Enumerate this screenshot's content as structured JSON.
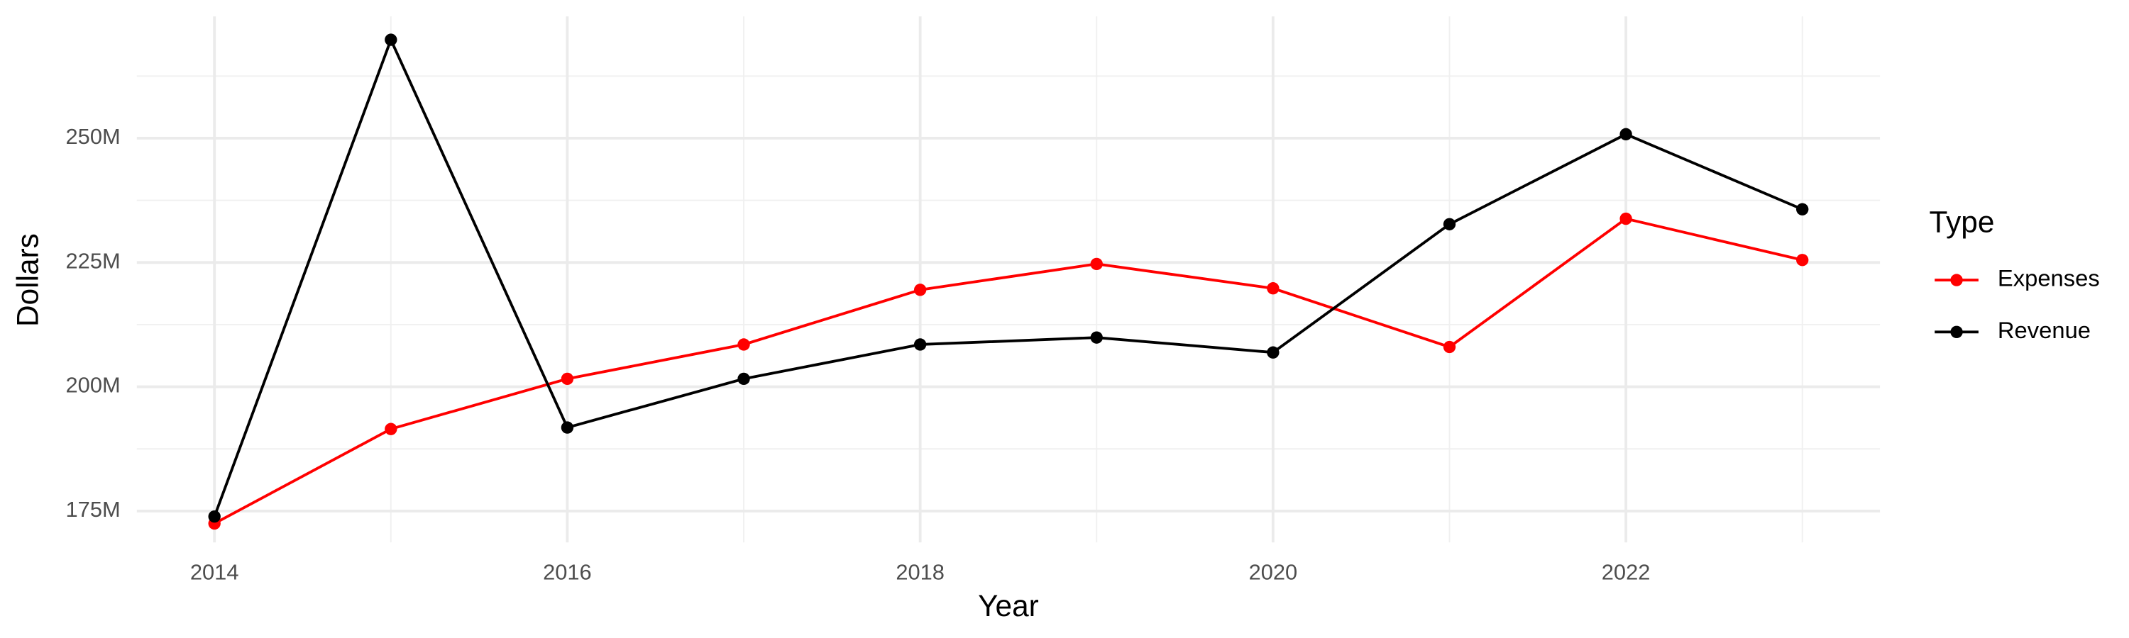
{
  "chart_data": {
    "type": "line",
    "x_label": "Year",
    "y_label": "Dollars",
    "legend_title": "Type",
    "x": [
      2014,
      2015,
      2016,
      2017,
      2018,
      2019,
      2020,
      2021,
      2022,
      2023
    ],
    "series": [
      {
        "name": "Expenses",
        "color": "#ff0000",
        "values": [
          172500000,
          191500000,
          201600000,
          208500000,
          219500000,
          224700000,
          219800000,
          208000000,
          233800000,
          225500000
        ]
      },
      {
        "name": "Revenue",
        "color": "#000000",
        "values": [
          173900000,
          269800000,
          191800000,
          201600000,
          208500000,
          209900000,
          206900000,
          232700000,
          250800000,
          235700000
        ]
      }
    ],
    "xlim": [
      2013.56,
      2023.44
    ],
    "xticks": [
      2014,
      2016,
      2018,
      2020,
      2022
    ],
    "ylim": [
      168700000,
      274500000
    ],
    "yticks": [
      {
        "value": 175000000,
        "label": "175M"
      },
      {
        "value": 200000000,
        "label": "200M"
      },
      {
        "value": 225000000,
        "label": "225M"
      },
      {
        "value": 250000000,
        "label": "250M"
      }
    ],
    "grid": true,
    "legend": "right"
  }
}
